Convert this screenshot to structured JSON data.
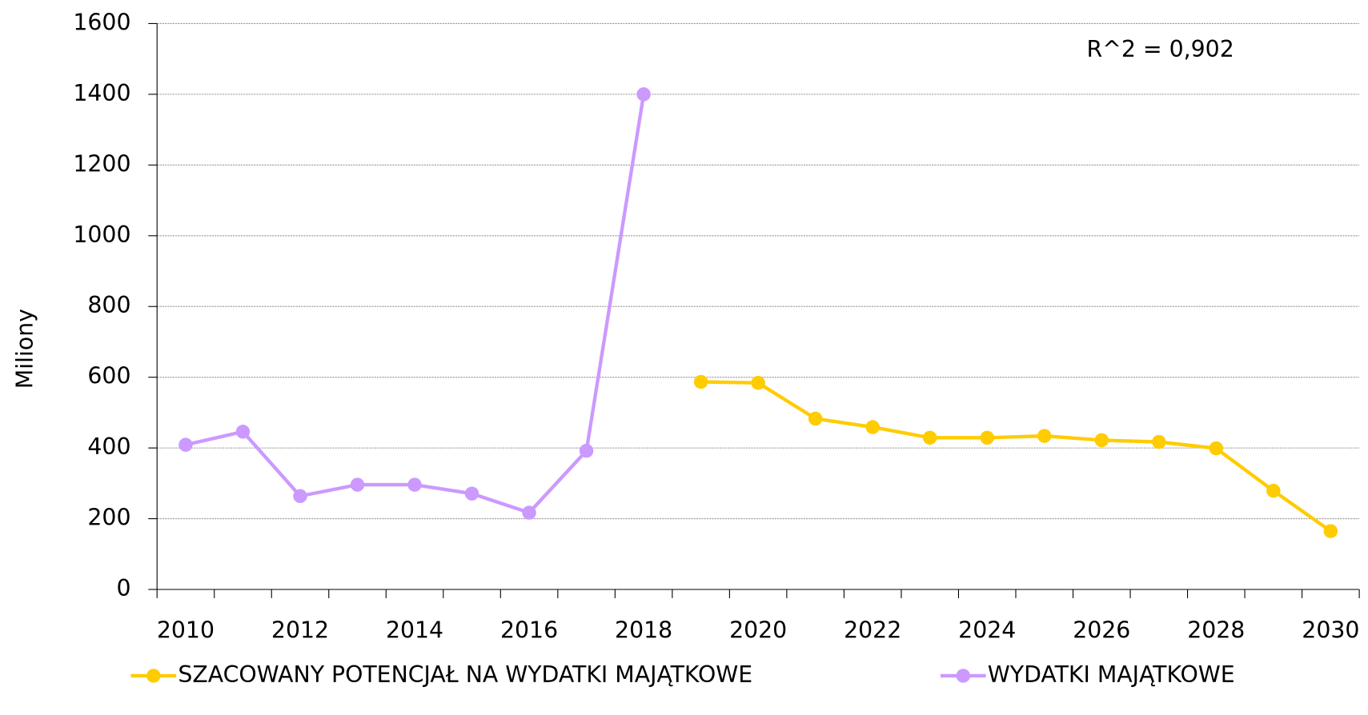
{
  "chart_data": {
    "type": "line",
    "y_label": "Miliony",
    "annotation": "R^2 = 0,902",
    "categories": [
      "2010",
      null,
      "2012",
      null,
      "2014",
      null,
      "2016",
      null,
      "2018",
      null,
      "2020",
      null,
      "2022",
      null,
      "2024",
      null,
      "2026",
      null,
      "2028",
      null,
      "2030"
    ],
    "series": [
      {
        "name": "SZACOWANY POTENCJAŁ NA WYDATKI MAJĄTKOWE",
        "color": "#ffcc00",
        "values": [
          null,
          null,
          null,
          null,
          null,
          null,
          null,
          null,
          null,
          587,
          584,
          483,
          459,
          429,
          429,
          434,
          422,
          417,
          399,
          279,
          165
        ]
      },
      {
        "name": "WYDATKI MAJĄTKOWE",
        "color": "#cc99ff",
        "values": [
          409,
          446,
          264,
          296,
          296,
          271,
          217,
          392,
          1400,
          null,
          null,
          null,
          null,
          null,
          null,
          null,
          null,
          null,
          null,
          null,
          null
        ]
      }
    ],
    "ylim": [
      0,
      1600
    ],
    "yticks": [
      0,
      200,
      400,
      600,
      800,
      1000,
      1200,
      1400,
      1600
    ],
    "grid": true,
    "legend": "bottom"
  }
}
